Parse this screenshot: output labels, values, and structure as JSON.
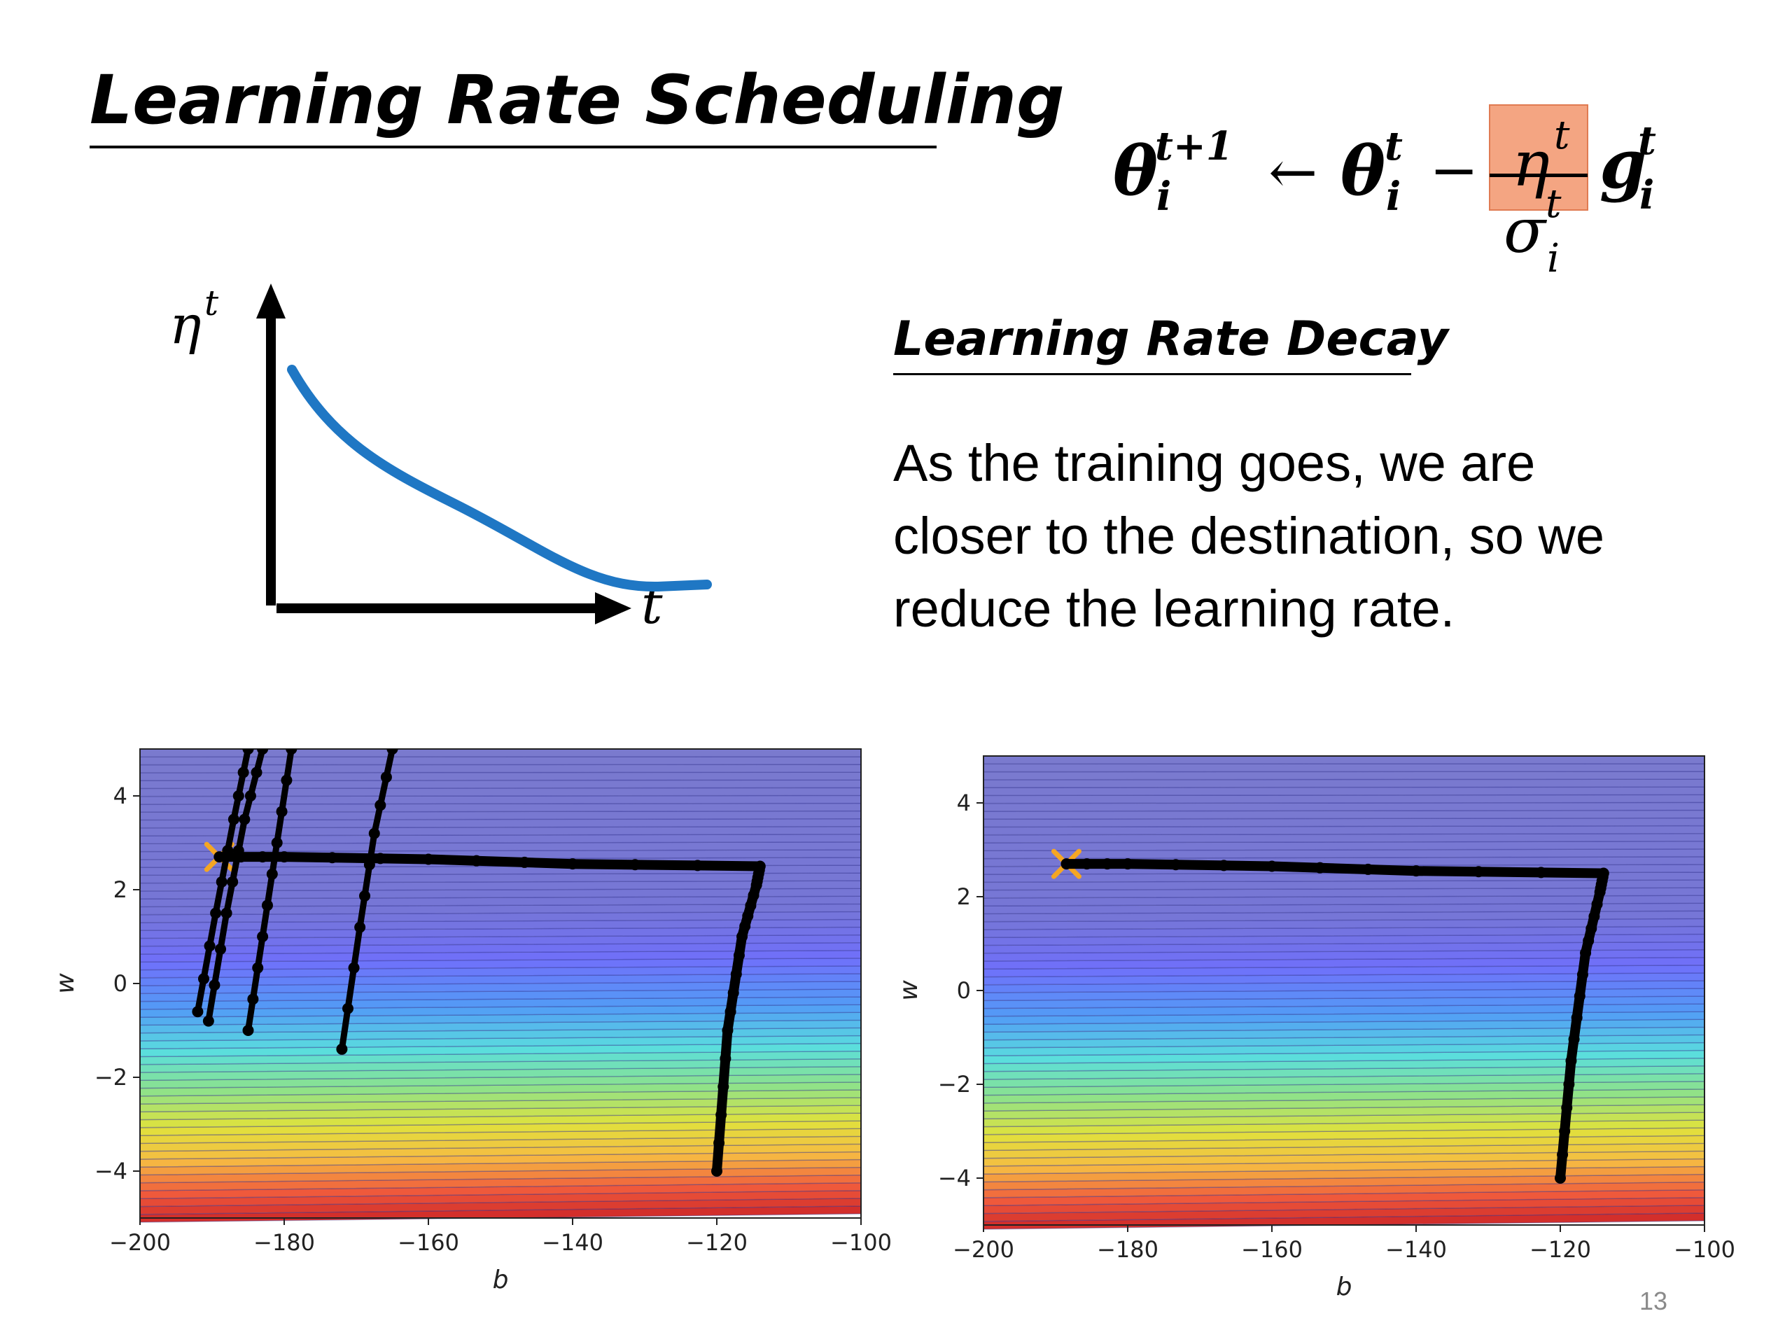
{
  "slide": {
    "title": "Learning Rate Scheduling",
    "page_number": "13"
  },
  "formula": {
    "lhs": "θ",
    "lhs_sup": "t+1",
    "lhs_sub": "i",
    "arrow": "←",
    "theta": "θ",
    "theta_sup": "t",
    "theta_sub": "i",
    "minus": "−",
    "eta": "η",
    "eta_sup": "t",
    "sigma": "σ",
    "sigma_sup": "t",
    "sigma_sub": "i",
    "g": "g",
    "g_sup": "t",
    "g_sub": "i",
    "highlight_color": "#f4a582"
  },
  "decay": {
    "subtitle": "Learning Rate Decay",
    "description_lines": [
      "As the training goes, we are",
      "closer to the destination, so we",
      "reduce the learning rate."
    ]
  },
  "sketch": {
    "y_label": "η",
    "y_label_sup": "t",
    "x_label": "t",
    "curve_color": "#1f77c4"
  },
  "chart_data": [
    {
      "type": "line",
      "title": "",
      "xlabel": "b",
      "ylabel": "w",
      "xlim": [
        -200,
        -100
      ],
      "ylim": [
        -5,
        5
      ],
      "xticks": [
        "−200",
        "−180",
        "−160",
        "−140",
        "−120",
        "−100"
      ],
      "yticks": [
        "4",
        "2",
        "0",
        "−2",
        "−4"
      ],
      "background": "contour (loss surface, horizontal bands from red at w=−5 to blue at w=5)",
      "target_marker": {
        "x": -189,
        "y": 2.7,
        "color": "#f5a623"
      },
      "series": [
        {
          "name": "path-main",
          "points": [
            [
              -120,
              -4
            ],
            [
              -118.5,
              -1
            ],
            [
              -116.5,
              1
            ],
            [
              -114.5,
              2.1
            ],
            [
              -114,
              2.5
            ],
            [
              -140,
              2.55
            ],
            [
              -160,
              2.65
            ],
            [
              -180,
              2.7
            ],
            [
              -189,
              2.7
            ]
          ]
        },
        {
          "name": "oscillation-1",
          "points": [
            [
              -192,
              -0.6
            ],
            [
              -189.5,
              1.5
            ],
            [
              -187,
              3.5
            ],
            [
              -185,
              5
            ]
          ]
        },
        {
          "name": "oscillation-2",
          "points": [
            [
              -190.5,
              -0.8
            ],
            [
              -188,
              1.5
            ],
            [
              -185.5,
              3.5
            ],
            [
              -183,
              5
            ]
          ]
        },
        {
          "name": "oscillation-3",
          "points": [
            [
              -185,
              -1
            ],
            [
              -183,
              1
            ],
            [
              -181,
              3
            ],
            [
              -179,
              5
            ]
          ]
        },
        {
          "name": "oscillation-4",
          "points": [
            [
              -172,
              -1.4
            ],
            [
              -169.5,
              1.2
            ],
            [
              -167.5,
              3.2
            ],
            [
              -165,
              5
            ]
          ]
        }
      ]
    },
    {
      "type": "line",
      "title": "",
      "xlabel": "b",
      "ylabel": "w",
      "xlim": [
        -200,
        -100
      ],
      "ylim": [
        -5,
        5
      ],
      "xticks": [
        "−200",
        "−180",
        "−160",
        "−140",
        "−120",
        "−100"
      ],
      "yticks": [
        "4",
        "2",
        "0",
        "−2",
        "−4"
      ],
      "background": "contour (loss surface, horizontal bands from red at w=−5 to blue at w=5)",
      "target_marker": {
        "x": -188.5,
        "y": 2.7,
        "color": "#f5a623"
      },
      "series": [
        {
          "name": "path-main",
          "points": [
            [
              -120,
              -4
            ],
            [
              -118.5,
              -1.5
            ],
            [
              -116.5,
              0.8
            ],
            [
              -114.5,
              2.1
            ],
            [
              -114,
              2.5
            ],
            [
              -140,
              2.55
            ],
            [
              -160,
              2.65
            ],
            [
              -180,
              2.7
            ],
            [
              -188.5,
              2.7
            ]
          ]
        }
      ]
    }
  ]
}
